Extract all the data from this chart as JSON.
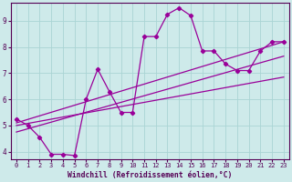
{
  "xlabel": "Windchill (Refroidissement éolien,°C)",
  "xlim": [
    -0.5,
    23.5
  ],
  "ylim": [
    3.7,
    9.7
  ],
  "yticks": [
    4,
    5,
    6,
    7,
    8,
    9
  ],
  "xticks": [
    0,
    1,
    2,
    3,
    4,
    5,
    6,
    7,
    8,
    9,
    10,
    11,
    12,
    13,
    14,
    15,
    16,
    17,
    18,
    19,
    20,
    21,
    22,
    23
  ],
  "bg_color": "#ceeaea",
  "grid_color": "#aad4d4",
  "line_color": "#990099",
  "series1_x": [
    0,
    1,
    2,
    3,
    4,
    5,
    6,
    7,
    8,
    9,
    10,
    11,
    12,
    13,
    14,
    15,
    16,
    17,
    18,
    19,
    20,
    21,
    22,
    23
  ],
  "series1_y": [
    5.25,
    5.0,
    4.55,
    3.9,
    3.9,
    3.85,
    6.0,
    7.15,
    6.3,
    5.5,
    5.5,
    8.4,
    8.4,
    9.25,
    9.5,
    9.2,
    7.85,
    7.85,
    7.35,
    7.1,
    7.1,
    7.85,
    8.2,
    8.2
  ],
  "trend1_x": [
    0,
    23
  ],
  "trend1_y": [
    5.1,
    8.2
  ],
  "trend2_x": [
    0,
    23
  ],
  "trend2_y": [
    4.75,
    7.65
  ],
  "trend3_x": [
    0,
    23
  ],
  "trend3_y": [
    5.0,
    6.85
  ]
}
